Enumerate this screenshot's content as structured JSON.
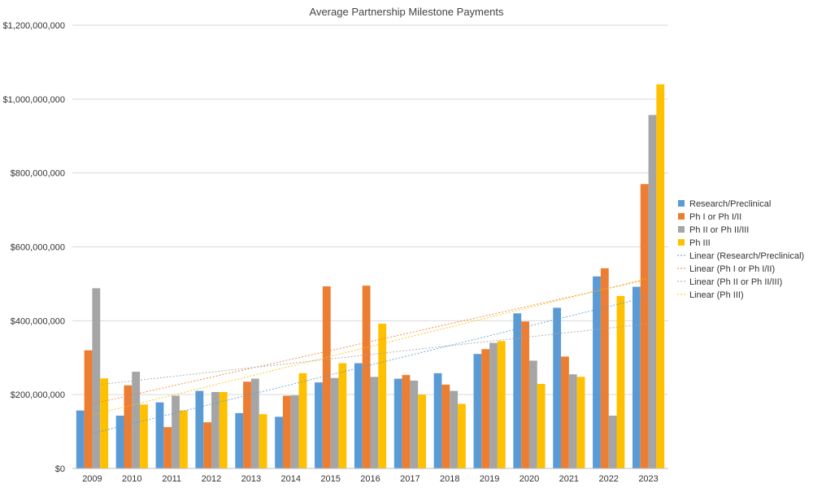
{
  "chart_data": {
    "type": "bar",
    "title": "Average Partnership Milestone Payments",
    "xlabel": "",
    "ylabel": "",
    "ylim": [
      0,
      1200000000
    ],
    "y_ticks": [
      0,
      200000000,
      400000000,
      600000000,
      800000000,
      1000000000,
      1200000000
    ],
    "y_tick_labels": [
      "$0",
      "$200,000,000",
      "$400,000,000",
      "$600,000,000",
      "$800,000,000",
      "$1,000,000,000",
      "$1,200,000,000"
    ],
    "grid": true,
    "legend_position": "right",
    "categories": [
      "2009",
      "2010",
      "2011",
      "2012",
      "2013",
      "2014",
      "2015",
      "2016",
      "2017",
      "2018",
      "2019",
      "2020",
      "2021",
      "2022",
      "2023"
    ],
    "series": [
      {
        "name": "Research/Preclinical",
        "color": "#5B9BD5",
        "values": [
          157000000,
          143000000,
          179000000,
          210000000,
          150000000,
          140000000,
          233000000,
          285000000,
          243000000,
          258000000,
          310000000,
          420000000,
          435000000,
          520000000,
          492000000
        ],
        "trendline": {
          "name": "Linear (Research/Preclinical)",
          "start": 95000000,
          "end": 465000000
        }
      },
      {
        "name": "Ph I or Ph I/II",
        "color": "#ED7D31",
        "values": [
          320000000,
          225000000,
          112000000,
          125000000,
          235000000,
          197000000,
          493000000,
          495000000,
          253000000,
          227000000,
          323000000,
          398000000,
          303000000,
          542000000,
          770000000
        ],
        "trendline": {
          "name": "Linear (Ph I or Ph I/II)",
          "start": 175000000,
          "end": 512000000
        }
      },
      {
        "name": "Ph II or Ph II/III",
        "color": "#A5A5A5",
        "values": [
          488000000,
          262000000,
          197000000,
          207000000,
          243000000,
          198000000,
          245000000,
          248000000,
          238000000,
          210000000,
          340000000,
          292000000,
          255000000,
          143000000,
          957000000
        ],
        "trendline": {
          "name": "Linear (Ph II or Ph II/III)",
          "start": 225000000,
          "end": 392000000
        }
      },
      {
        "name": "Ph III",
        "color": "#FFC000",
        "values": [
          244000000,
          173000000,
          157000000,
          207000000,
          147000000,
          258000000,
          285000000,
          392000000,
          200000000,
          175000000,
          345000000,
          229000000,
          248000000,
          467000000,
          1040000000
        ],
        "trendline": {
          "name": "Linear (Ph III)",
          "start": 145000000,
          "end": 515000000
        }
      }
    ]
  }
}
